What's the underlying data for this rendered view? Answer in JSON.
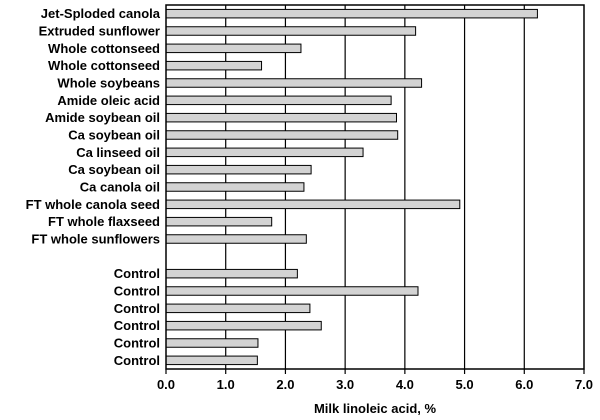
{
  "chart_data": {
    "type": "bar",
    "orientation": "horizontal",
    "title": "",
    "xlabel": "Milk linoleic acid, %",
    "ylabel": "",
    "xlim": [
      0,
      7
    ],
    "xticks": [
      "0.0",
      "1.0",
      "2.0",
      "3.0",
      "4.0",
      "5.0",
      "6.0",
      "7.0"
    ],
    "grid": "vertical",
    "legend": "none",
    "bar_color": "#d3d3d3",
    "bar_edge_color": "#000000",
    "groups": [
      {
        "categories": [
          "Jet-Sploded canola",
          "Extruded sunflower",
          "Whole cottonseed",
          "Whole cottonseed",
          "Whole soybeans",
          "Amide oleic acid",
          "Amide soybean oil",
          "Ca soybean oil",
          "Ca linseed oil",
          "Ca soybean oil",
          "Ca canola oil",
          "FT whole canola seed",
          "FT whole flaxseed",
          "FT whole sunflowers"
        ],
        "values": [
          6.22,
          4.18,
          2.26,
          1.6,
          4.28,
          3.77,
          3.86,
          3.88,
          3.3,
          2.43,
          2.31,
          4.92,
          1.77,
          2.35
        ]
      },
      {
        "categories": [
          "Control",
          "Control",
          "Control",
          "Control",
          "Control",
          "Control"
        ],
        "values": [
          2.2,
          4.22,
          2.41,
          2.6,
          1.54,
          1.53
        ]
      }
    ]
  }
}
